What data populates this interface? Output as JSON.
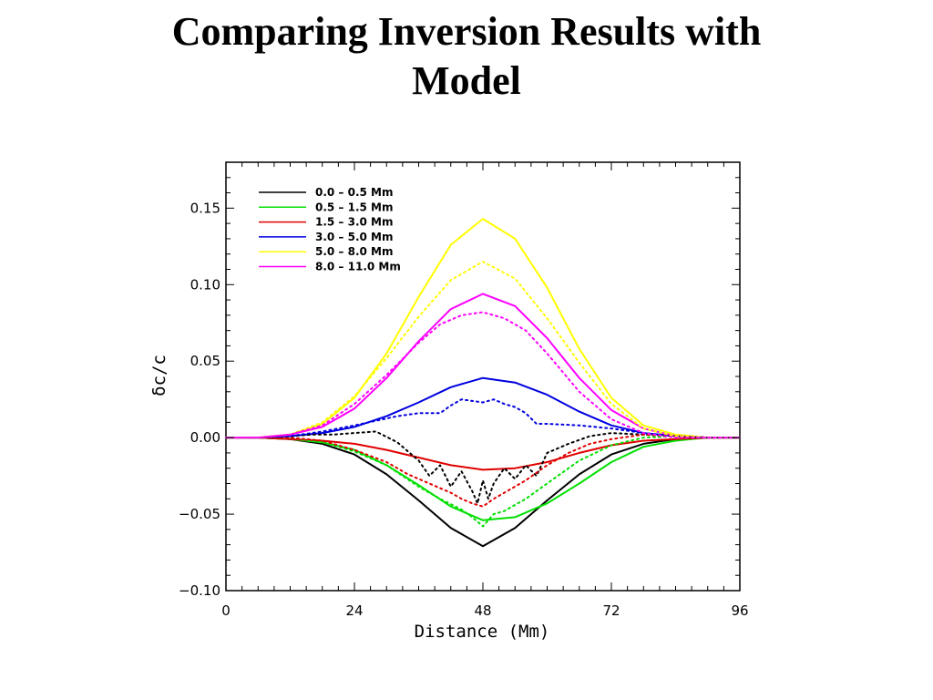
{
  "slide": {
    "title_line1": "Comparing Inversion Results with",
    "title_line2": "Model"
  },
  "chart_data": {
    "type": "line",
    "xlabel": "Distance (Mm)",
    "ylabel": "δc/c",
    "xlim": [
      0,
      96
    ],
    "ylim": [
      -0.1,
      0.18
    ],
    "xticks": [
      0,
      24,
      48,
      72,
      96
    ],
    "xtick_labels": [
      "0",
      "24",
      "48",
      "72",
      "96"
    ],
    "yticks": [
      -0.1,
      -0.05,
      0.0,
      0.05,
      0.1,
      0.15
    ],
    "ytick_labels": [
      "−0.10",
      "−0.05",
      "0.00",
      "0.05",
      "0.10",
      "0.15"
    ],
    "grid": false,
    "legend_position": "top-left",
    "line_styles": {
      "solid": "model",
      "dotted": "inversion"
    },
    "series": [
      {
        "name": "0.0  –  0.5 Mm",
        "color": "#000000",
        "style": "solid",
        "x": [
          0,
          6,
          12,
          18,
          24,
          30,
          36,
          42,
          48,
          54,
          60,
          66,
          72,
          78,
          84,
          90,
          96
        ],
        "y": [
          0.0,
          0.0,
          -0.001,
          -0.004,
          -0.011,
          -0.024,
          -0.041,
          -0.059,
          -0.071,
          -0.059,
          -0.041,
          -0.024,
          -0.011,
          -0.004,
          -0.001,
          0.0,
          0.0
        ]
      },
      {
        "name": "0.5  –  1.5 Mm",
        "color": "#00e000",
        "style": "solid",
        "x": [
          0,
          6,
          12,
          18,
          24,
          30,
          36,
          42,
          48,
          54,
          60,
          66,
          72,
          78,
          84,
          90,
          96
        ],
        "y": [
          0.0,
          0.0,
          -0.001,
          -0.003,
          -0.008,
          -0.018,
          -0.031,
          -0.045,
          -0.054,
          -0.052,
          -0.043,
          -0.03,
          -0.016,
          -0.006,
          -0.002,
          0.0,
          0.0
        ]
      },
      {
        "name": "1.5  –  3.0 Mm",
        "color": "#e00000",
        "style": "solid",
        "x": [
          0,
          6,
          12,
          18,
          24,
          30,
          36,
          42,
          48,
          54,
          60,
          66,
          72,
          78,
          84,
          90,
          96
        ],
        "y": [
          0.0,
          0.0,
          -0.001,
          -0.002,
          -0.004,
          -0.008,
          -0.013,
          -0.018,
          -0.021,
          -0.02,
          -0.016,
          -0.01,
          -0.005,
          -0.002,
          -0.001,
          0.0,
          0.0
        ]
      },
      {
        "name": "3.0  –  5.0 Mm",
        "color": "#0000e0",
        "style": "solid",
        "x": [
          0,
          6,
          12,
          18,
          24,
          30,
          36,
          42,
          48,
          54,
          60,
          66,
          72,
          78,
          84,
          90,
          96
        ],
        "y": [
          0.0,
          0.0,
          0.001,
          0.003,
          0.007,
          0.014,
          0.023,
          0.033,
          0.039,
          0.036,
          0.028,
          0.017,
          0.008,
          0.003,
          0.001,
          0.0,
          0.0
        ]
      },
      {
        "name": "5.0  –  8.0 Mm",
        "color": "#ffff00",
        "style": "solid",
        "x": [
          0,
          6,
          12,
          18,
          24,
          30,
          36,
          42,
          48,
          54,
          60,
          66,
          72,
          78,
          84,
          90,
          96
        ],
        "y": [
          0.0,
          0.0,
          0.002,
          0.009,
          0.026,
          0.055,
          0.092,
          0.126,
          0.143,
          0.13,
          0.098,
          0.058,
          0.026,
          0.008,
          0.002,
          0.0,
          0.0
        ]
      },
      {
        "name": "8.0  –  11.0 Mm",
        "color": "#ff00ff",
        "style": "solid",
        "x": [
          0,
          6,
          12,
          18,
          24,
          30,
          36,
          42,
          48,
          54,
          60,
          66,
          72,
          78,
          84,
          90,
          96
        ],
        "y": [
          0.0,
          0.0,
          0.002,
          0.007,
          0.019,
          0.039,
          0.063,
          0.084,
          0.094,
          0.086,
          0.065,
          0.039,
          0.018,
          0.006,
          0.001,
          0.0,
          0.0
        ]
      },
      {
        "color": "#000000",
        "style": "dotted",
        "x": [
          0,
          6,
          12,
          16,
          20,
          24,
          28,
          32,
          36,
          38,
          40,
          42,
          44,
          46,
          47,
          48,
          49,
          50,
          52,
          54,
          56,
          58,
          60,
          64,
          68,
          72,
          78,
          84,
          90,
          96
        ],
        "y": [
          0.0,
          0.0,
          0.001,
          0.002,
          0.002,
          0.003,
          0.004,
          -0.003,
          -0.015,
          -0.025,
          -0.018,
          -0.032,
          -0.022,
          -0.035,
          -0.043,
          -0.028,
          -0.04,
          -0.03,
          -0.02,
          -0.027,
          -0.018,
          -0.025,
          -0.01,
          -0.004,
          0.001,
          0.003,
          0.002,
          0.001,
          0.0,
          0.0
        ]
      },
      {
        "color": "#00e000",
        "style": "dotted",
        "x": [
          0,
          6,
          12,
          18,
          24,
          30,
          36,
          40,
          44,
          46,
          48,
          50,
          52,
          56,
          60,
          66,
          72,
          78,
          84,
          90,
          96
        ],
        "y": [
          0.0,
          0.0,
          0.0,
          -0.003,
          -0.009,
          -0.018,
          -0.032,
          -0.04,
          -0.047,
          -0.052,
          -0.058,
          -0.05,
          -0.048,
          -0.04,
          -0.03,
          -0.015,
          -0.005,
          0.0,
          0.001,
          0.0,
          0.0
        ]
      },
      {
        "color": "#e00000",
        "style": "dotted",
        "x": [
          0,
          6,
          12,
          18,
          24,
          30,
          34,
          38,
          42,
          44,
          46,
          48,
          50,
          52,
          56,
          60,
          64,
          68,
          72,
          78,
          84,
          90,
          96
        ],
        "y": [
          0.0,
          0.0,
          0.0,
          -0.002,
          -0.008,
          -0.016,
          -0.024,
          -0.03,
          -0.036,
          -0.04,
          -0.043,
          -0.045,
          -0.04,
          -0.036,
          -0.028,
          -0.018,
          -0.01,
          -0.004,
          -0.001,
          0.002,
          0.001,
          0.0,
          0.0
        ]
      },
      {
        "color": "#0000e0",
        "style": "dotted",
        "x": [
          0,
          6,
          12,
          18,
          24,
          28,
          32,
          36,
          40,
          42,
          44,
          46,
          48,
          50,
          52,
          54,
          56,
          58,
          60,
          66,
          72,
          78,
          84,
          90,
          96
        ],
        "y": [
          0.0,
          0.0,
          0.001,
          0.004,
          0.008,
          0.011,
          0.014,
          0.016,
          0.016,
          0.021,
          0.025,
          0.024,
          0.023,
          0.025,
          0.022,
          0.02,
          0.016,
          0.009,
          0.009,
          0.008,
          0.006,
          0.003,
          0.001,
          0.0,
          0.0
        ]
      },
      {
        "color": "#ffff00",
        "style": "dotted",
        "x": [
          0,
          6,
          12,
          18,
          24,
          30,
          36,
          42,
          48,
          54,
          60,
          66,
          72,
          78,
          84,
          90,
          96
        ],
        "y": [
          0.0,
          0.0,
          0.002,
          0.01,
          0.027,
          0.052,
          0.079,
          0.103,
          0.115,
          0.104,
          0.078,
          0.049,
          0.022,
          0.006,
          0.001,
          0.0,
          0.0
        ]
      },
      {
        "color": "#ff00ff",
        "style": "dotted",
        "x": [
          0,
          6,
          12,
          18,
          24,
          30,
          36,
          40,
          44,
          48,
          52,
          56,
          60,
          66,
          72,
          78,
          84,
          90,
          96
        ],
        "y": [
          0.0,
          0.0,
          0.002,
          0.008,
          0.022,
          0.041,
          0.062,
          0.074,
          0.08,
          0.082,
          0.078,
          0.07,
          0.055,
          0.03,
          0.012,
          0.003,
          0.0,
          0.0,
          0.0
        ]
      }
    ]
  }
}
